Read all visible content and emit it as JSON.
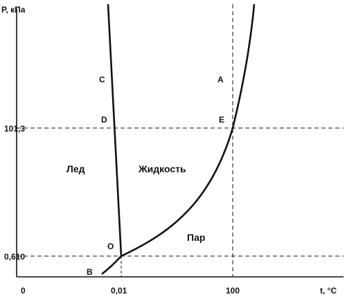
{
  "axes": {
    "y_label": "P, кПа",
    "x_label": "t, °C",
    "origin_label": "0",
    "y_ticks": [
      "101,3",
      "0,610"
    ],
    "x_ticks": [
      "0,01",
      "100"
    ]
  },
  "regions": {
    "ice": "Лед",
    "liquid": "Жидкость",
    "vapor": "Пар"
  },
  "points": {
    "A": "A",
    "B": "B",
    "C": "C",
    "D": "D",
    "E": "E",
    "O": "O"
  },
  "colors": {
    "ink": "#111111",
    "background": "#ffffff"
  }
}
